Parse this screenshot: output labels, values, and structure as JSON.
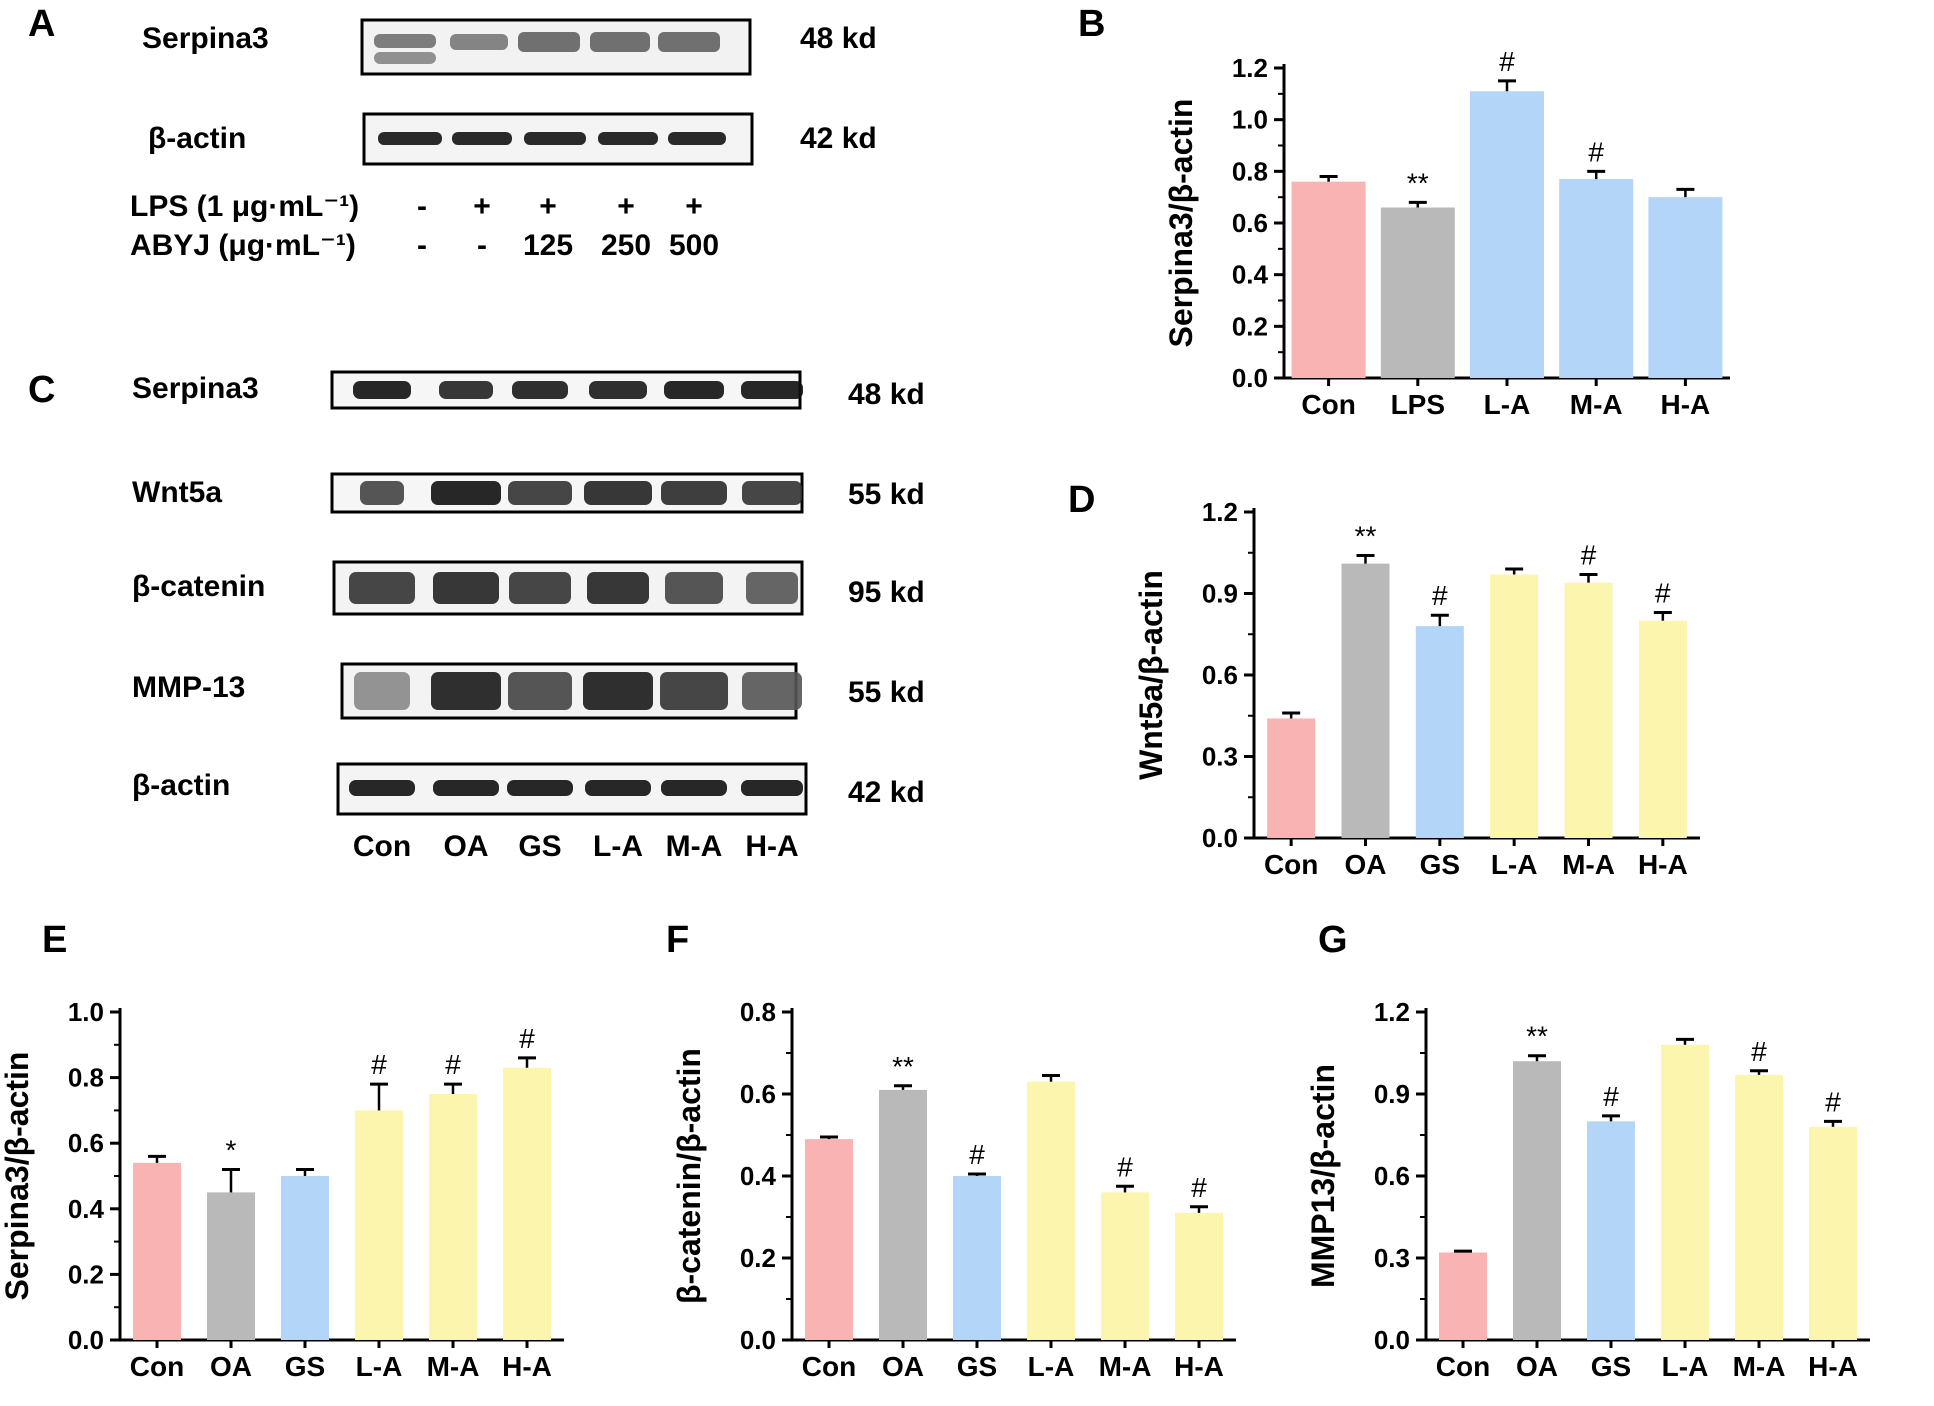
{
  "panels": {
    "A": "A",
    "B": "B",
    "C": "C",
    "D": "D",
    "E": "E",
    "F": "F",
    "G": "G"
  },
  "blot_A": {
    "rows": [
      {
        "label": "Serpina3",
        "size": "48 kd"
      },
      {
        "label": "β-actin",
        "size": "42 kd"
      }
    ],
    "conditions": [
      {
        "label": "LPS (1 μg·mL⁻¹)",
        "values": [
          "-",
          "+",
          "+",
          "+",
          "+"
        ]
      },
      {
        "label": "ABYJ (μg·mL⁻¹)",
        "values": [
          "-",
          "-",
          "125",
          "250",
          "500"
        ]
      }
    ]
  },
  "blot_C": {
    "rows": [
      {
        "label": "Serpina3",
        "size": "48 kd"
      },
      {
        "label": "Wnt5a",
        "size": "55 kd"
      },
      {
        "label": "β-catenin",
        "size": "95 kd"
      },
      {
        "label": "MMP-13",
        "size": "55 kd"
      },
      {
        "label": "β-actin",
        "size": "42 kd"
      }
    ],
    "lanes": [
      "Con",
      "OA",
      "GS",
      "L-A",
      "M-A",
      "H-A"
    ]
  },
  "colors": {
    "pink": "#f9b3b3",
    "gray": "#b9b9b9",
    "blue": "#b3d5f7",
    "yellow": "#fbf5ae"
  },
  "chart_data": [
    {
      "id": "B",
      "type": "bar",
      "ylabel": "Serpina3/β-actin",
      "categories": [
        "Con",
        "LPS",
        "L-A",
        "M-A",
        "H-A"
      ],
      "values": [
        0.76,
        0.66,
        1.11,
        0.77,
        0.7
      ],
      "errors": [
        0.02,
        0.02,
        0.04,
        0.03,
        0.03
      ],
      "significance": [
        "",
        "**",
        "#",
        "#",
        ""
      ],
      "colors": [
        "pink",
        "gray",
        "blue",
        "blue",
        "blue"
      ],
      "ylim": [
        0,
        1.2
      ],
      "ticks": [
        "0.0",
        "0.2",
        "0.4",
        "0.6",
        "0.8",
        "1.0",
        "1.2"
      ]
    },
    {
      "id": "D",
      "type": "bar",
      "ylabel": "Wnt5a/β-actin",
      "categories": [
        "Con",
        "OA",
        "GS",
        "L-A",
        "M-A",
        "H-A"
      ],
      "values": [
        0.44,
        1.01,
        0.78,
        0.97,
        0.94,
        0.8
      ],
      "errors": [
        0.02,
        0.03,
        0.04,
        0.02,
        0.03,
        0.03
      ],
      "significance": [
        "",
        "**",
        "#",
        "",
        "#",
        "#"
      ],
      "colors": [
        "pink",
        "gray",
        "blue",
        "yellow",
        "yellow",
        "yellow"
      ],
      "ylim": [
        0,
        1.2
      ],
      "ticks": [
        "0.0",
        "0.3",
        "0.6",
        "0.9",
        "1.2"
      ]
    },
    {
      "id": "E",
      "type": "bar",
      "ylabel": "Serpina3/β-actin",
      "categories": [
        "Con",
        "OA",
        "GS",
        "L-A",
        "M-A",
        "H-A"
      ],
      "values": [
        0.54,
        0.45,
        0.5,
        0.7,
        0.75,
        0.83
      ],
      "errors": [
        0.02,
        0.07,
        0.02,
        0.08,
        0.03,
        0.03
      ],
      "significance": [
        "",
        "*",
        "",
        "#",
        "#",
        "#"
      ],
      "colors": [
        "pink",
        "gray",
        "blue",
        "yellow",
        "yellow",
        "yellow"
      ],
      "ylim": [
        0,
        1.0
      ],
      "ticks": [
        "0.0",
        "0.2",
        "0.4",
        "0.6",
        "0.8",
        "1.0"
      ]
    },
    {
      "id": "F",
      "type": "bar",
      "ylabel": "β-catenin/β-actin",
      "categories": [
        "Con",
        "OA",
        "GS",
        "L-A",
        "M-A",
        "H-A"
      ],
      "values": [
        0.49,
        0.61,
        0.4,
        0.63,
        0.36,
        0.31
      ],
      "errors": [
        0.005,
        0.01,
        0.005,
        0.015,
        0.015,
        0.015
      ],
      "significance": [
        "",
        "**",
        "#",
        "",
        "#",
        "#"
      ],
      "colors": [
        "pink",
        "gray",
        "blue",
        "yellow",
        "yellow",
        "yellow"
      ],
      "ylim": [
        0,
        0.8
      ],
      "ticks": [
        "0.0",
        "0.2",
        "0.4",
        "0.6",
        "0.8"
      ]
    },
    {
      "id": "G",
      "type": "bar",
      "ylabel": "MMP13/β-actin",
      "categories": [
        "Con",
        "OA",
        "GS",
        "L-A",
        "M-A",
        "H-A"
      ],
      "values": [
        0.32,
        1.02,
        0.8,
        1.08,
        0.97,
        0.78
      ],
      "errors": [
        0.005,
        0.02,
        0.02,
        0.02,
        0.015,
        0.02
      ],
      "significance": [
        "",
        "**",
        "#",
        "",
        "#",
        "#"
      ],
      "colors": [
        "pink",
        "gray",
        "blue",
        "yellow",
        "yellow",
        "yellow"
      ],
      "ylim": [
        0,
        1.2
      ],
      "ticks": [
        "0.0",
        "0.3",
        "0.6",
        "0.9",
        "1.2"
      ]
    }
  ]
}
